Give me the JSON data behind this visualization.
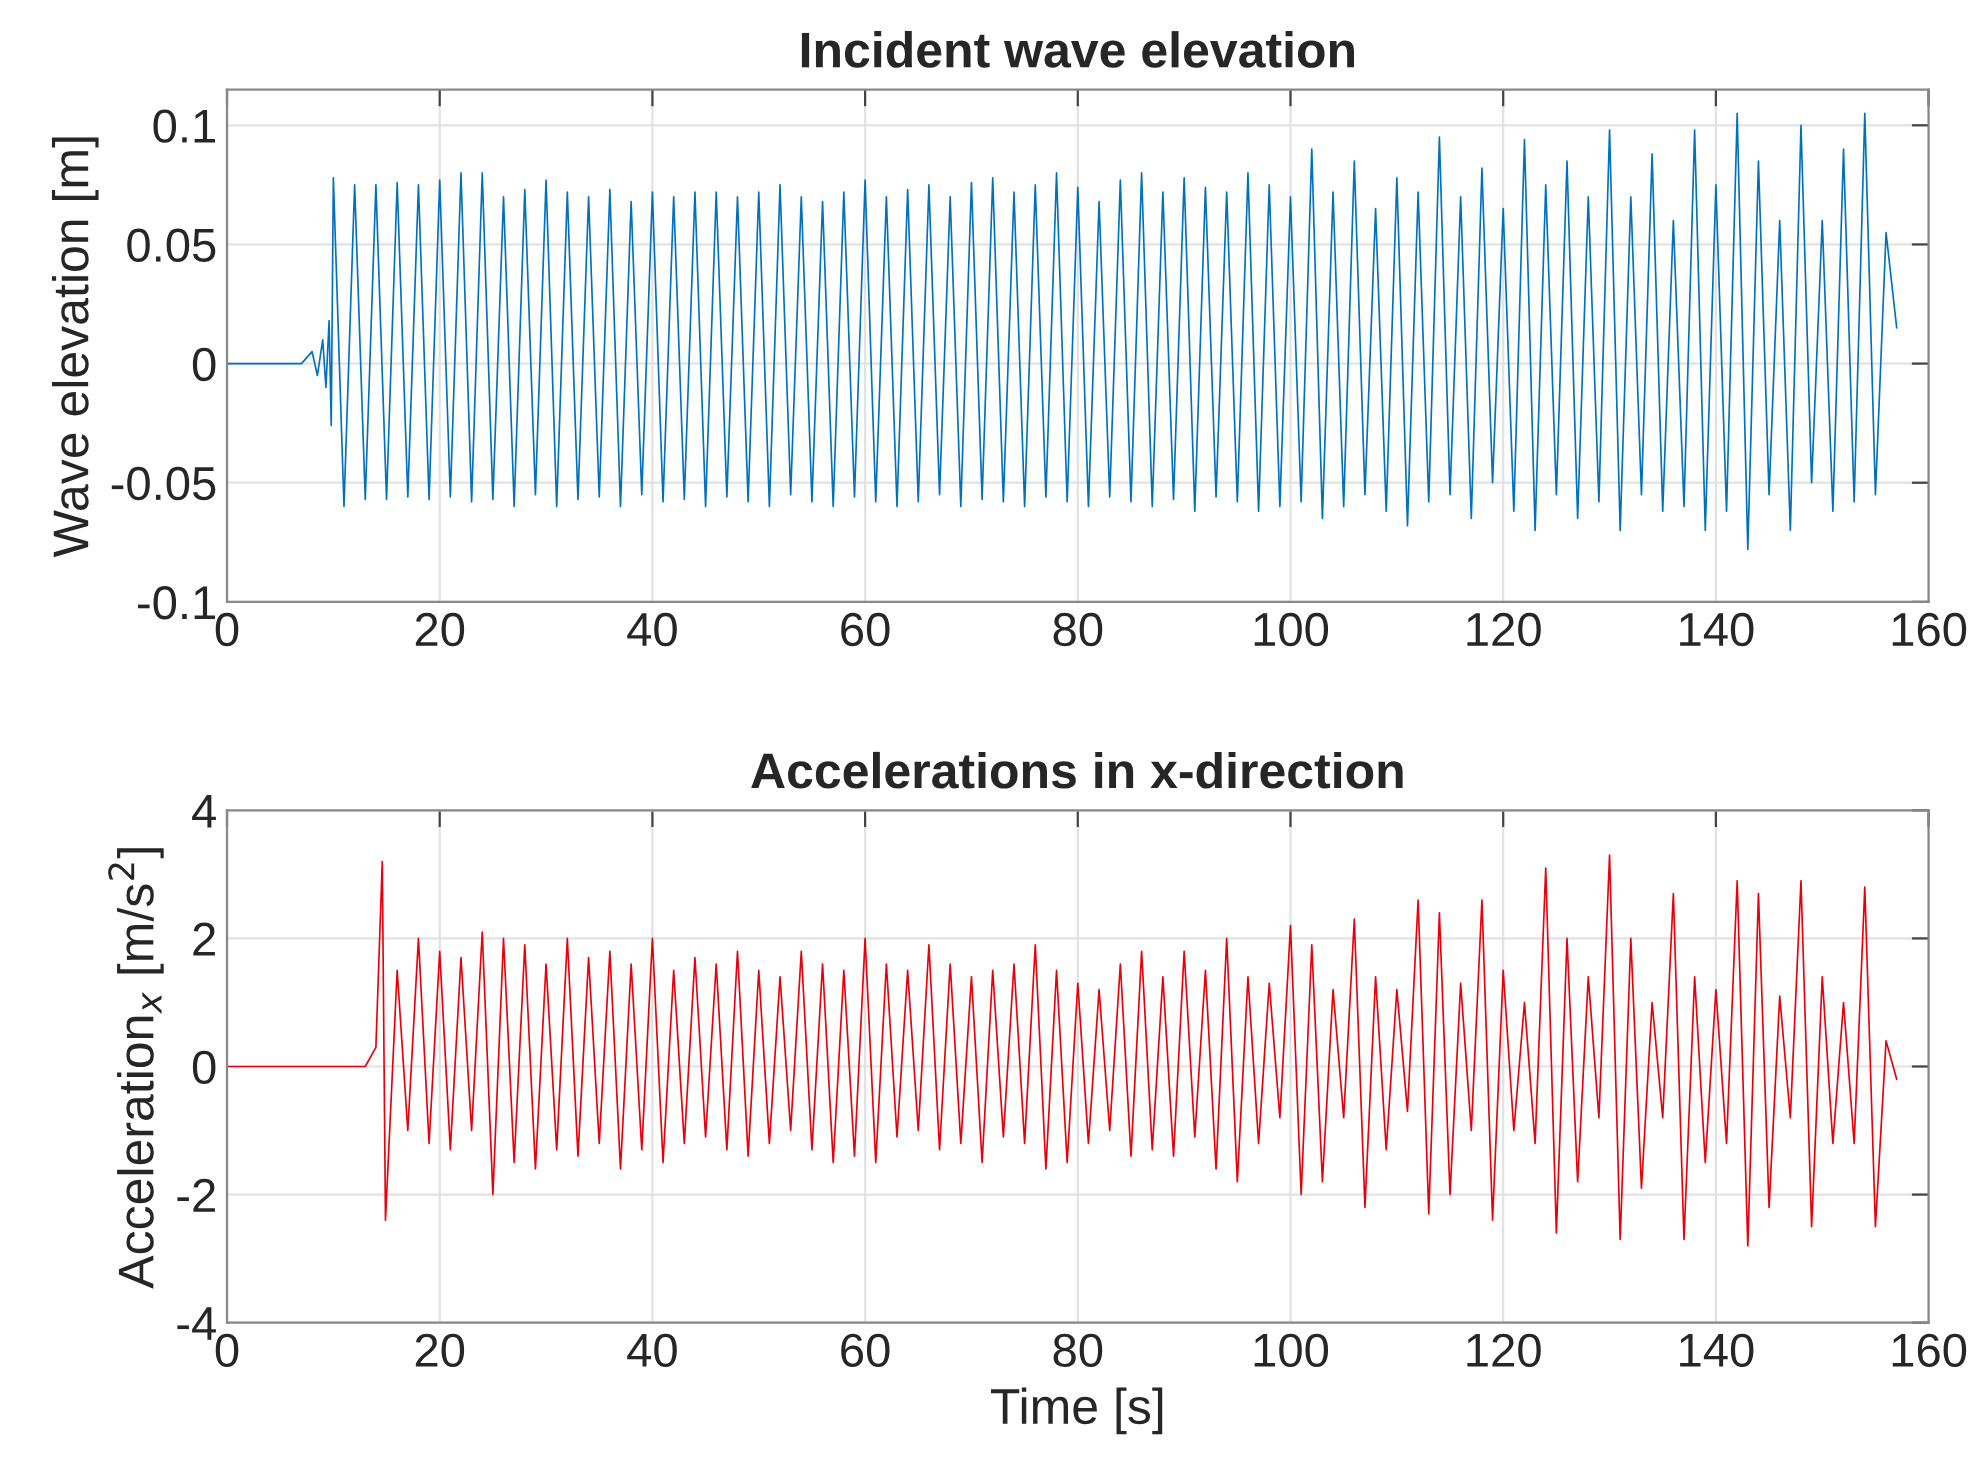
{
  "chart_data": [
    {
      "type": "line",
      "title": "Incident wave elevation",
      "ylabel": "Wave elevation [m]",
      "xlim": [
        0,
        160
      ],
      "xticks": [
        0,
        20,
        40,
        60,
        80,
        100,
        120,
        140,
        160
      ],
      "ylim": [
        -0.1,
        0.115
      ],
      "yticks": [
        -0.1,
        -0.05,
        0,
        0.05,
        0.1
      ],
      "grid": true,
      "line_style": "solid",
      "series": [
        {
          "color": "#0072bd",
          "x": [
            0,
            7,
            8,
            8.5,
            9,
            9.3,
            9.6,
            9.8,
            10,
            11,
            12,
            13,
            14,
            15,
            16,
            17,
            18,
            19,
            20,
            21,
            22,
            23,
            24,
            25,
            26,
            27,
            28,
            29,
            30,
            31,
            32,
            33,
            34,
            35,
            36,
            37,
            38,
            39,
            40,
            41,
            42,
            43,
            44,
            45,
            46,
            47,
            48,
            49,
            50,
            51,
            52,
            53,
            54,
            55,
            56,
            57,
            58,
            59,
            60,
            61,
            62,
            63,
            64,
            65,
            66,
            67,
            68,
            69,
            70,
            71,
            72,
            73,
            74,
            75,
            76,
            77,
            78,
            79,
            80,
            81,
            82,
            83,
            84,
            85,
            86,
            87,
            88,
            89,
            90,
            91,
            92,
            93,
            94,
            95,
            96,
            97,
            98,
            99,
            100,
            101,
            102,
            103,
            104,
            105,
            106,
            107,
            108,
            109,
            110,
            111,
            112,
            113,
            114,
            115,
            116,
            117,
            118,
            119,
            120,
            121,
            122,
            123,
            124,
            125,
            126,
            127,
            128,
            129,
            130,
            131,
            132,
            133,
            134,
            135,
            136,
            137,
            138,
            139,
            140,
            141,
            142,
            143,
            144,
            145,
            146,
            147,
            148,
            149,
            150,
            151,
            152,
            153,
            154,
            155,
            156,
            157
          ],
          "values": [
            0,
            0,
            0.005,
            -0.005,
            0.01,
            -0.01,
            0.018,
            -0.026,
            0.078,
            -0.06,
            0.075,
            -0.057,
            0.075,
            -0.057,
            0.076,
            -0.056,
            0.075,
            -0.057,
            0.077,
            -0.056,
            0.08,
            -0.058,
            0.08,
            -0.057,
            0.07,
            -0.06,
            0.073,
            -0.055,
            0.077,
            -0.06,
            0.072,
            -0.057,
            0.07,
            -0.056,
            0.073,
            -0.06,
            0.068,
            -0.055,
            0.072,
            -0.058,
            0.07,
            -0.057,
            0.072,
            -0.06,
            0.072,
            -0.056,
            0.07,
            -0.058,
            0.072,
            -0.06,
            0.075,
            -0.055,
            0.07,
            -0.058,
            0.068,
            -0.06,
            0.072,
            -0.056,
            0.077,
            -0.058,
            0.07,
            -0.06,
            0.073,
            -0.058,
            0.075,
            -0.055,
            0.07,
            -0.06,
            0.076,
            -0.057,
            0.078,
            -0.058,
            0.072,
            -0.06,
            0.075,
            -0.056,
            0.08,
            -0.058,
            0.074,
            -0.06,
            0.068,
            -0.056,
            0.077,
            -0.058,
            0.08,
            -0.06,
            0.072,
            -0.057,
            0.078,
            -0.062,
            0.074,
            -0.056,
            0.072,
            -0.058,
            0.08,
            -0.062,
            0.075,
            -0.06,
            0.07,
            -0.058,
            0.09,
            -0.065,
            0.072,
            -0.06,
            0.085,
            -0.055,
            0.065,
            -0.062,
            0.078,
            -0.068,
            0.072,
            -0.058,
            0.095,
            -0.055,
            0.07,
            -0.065,
            0.082,
            -0.05,
            0.065,
            -0.062,
            0.094,
            -0.07,
            0.075,
            -0.055,
            0.085,
            -0.065,
            0.07,
            -0.058,
            0.098,
            -0.07,
            0.07,
            -0.055,
            0.088,
            -0.062,
            0.06,
            -0.06,
            0.098,
            -0.07,
            0.075,
            -0.062,
            0.105,
            -0.078,
            0.085,
            -0.055,
            0.06,
            -0.07,
            0.1,
            -0.05,
            0.06,
            -0.062,
            0.09,
            -0.058,
            0.105,
            -0.055,
            0.055,
            0.015
          ]
        }
      ]
    },
    {
      "type": "line",
      "title": "Accelerations in x-direction",
      "ylabel": "Acceleration$_{x}$ [m/s$^{2}$]",
      "xlabel": "Time [s]",
      "xlim": [
        0,
        160
      ],
      "xticks": [
        0,
        20,
        40,
        60,
        80,
        100,
        120,
        140,
        160
      ],
      "ylim": [
        -4,
        4
      ],
      "yticks": [
        -4,
        -2,
        0,
        2,
        4
      ],
      "grid": true,
      "line_style": "solid",
      "series": [
        {
          "color": "#e8000b",
          "x": [
            0,
            13,
            14,
            14.6,
            14.9,
            16,
            17,
            18,
            19,
            20,
            21,
            22,
            23,
            24,
            25,
            26,
            27,
            28,
            29,
            30,
            31,
            32,
            33,
            34,
            35,
            36,
            37,
            38,
            39,
            40,
            41,
            42,
            43,
            44,
            45,
            46,
            47,
            48,
            49,
            50,
            51,
            52,
            53,
            54,
            55,
            56,
            57,
            58,
            59,
            60,
            61,
            62,
            63,
            64,
            65,
            66,
            67,
            68,
            69,
            70,
            71,
            72,
            73,
            74,
            75,
            76,
            77,
            78,
            79,
            80,
            81,
            82,
            83,
            84,
            85,
            86,
            87,
            88,
            89,
            90,
            91,
            92,
            93,
            94,
            95,
            96,
            97,
            98,
            99,
            100,
            101,
            102,
            103,
            104,
            105,
            106,
            107,
            108,
            109,
            110,
            111,
            112,
            113,
            114,
            115,
            116,
            117,
            118,
            119,
            120,
            121,
            122,
            123,
            124,
            125,
            126,
            127,
            128,
            129,
            130,
            131,
            132,
            133,
            134,
            135,
            136,
            137,
            138,
            139,
            140,
            141,
            142,
            143,
            144,
            145,
            146,
            147,
            148,
            149,
            150,
            151,
            152,
            153,
            154,
            155,
            156,
            157
          ],
          "values": [
            0,
            0,
            0.3,
            3.2,
            -2.4,
            1.5,
            -1.0,
            2.0,
            -1.2,
            1.8,
            -1.3,
            1.7,
            -1.0,
            2.1,
            -2.0,
            2.0,
            -1.5,
            1.9,
            -1.6,
            1.6,
            -1.3,
            2.0,
            -1.4,
            1.7,
            -1.2,
            1.8,
            -1.6,
            1.6,
            -1.3,
            2.0,
            -1.5,
            1.5,
            -1.2,
            1.7,
            -1.1,
            1.6,
            -1.3,
            1.8,
            -1.4,
            1.5,
            -1.2,
            1.4,
            -1.0,
            1.8,
            -1.3,
            1.6,
            -1.5,
            1.5,
            -1.4,
            2.0,
            -1.5,
            1.6,
            -1.1,
            1.5,
            -1.0,
            1.9,
            -1.3,
            1.6,
            -1.2,
            1.4,
            -1.5,
            1.5,
            -1.1,
            1.6,
            -1.2,
            1.9,
            -1.6,
            1.5,
            -1.5,
            1.3,
            -1.2,
            1.2,
            -1.0,
            1.6,
            -1.4,
            1.8,
            -1.3,
            1.4,
            -1.4,
            1.8,
            -1.1,
            1.5,
            -1.6,
            2.0,
            -1.8,
            1.4,
            -1.2,
            1.3,
            -0.8,
            2.2,
            -2.0,
            1.9,
            -1.8,
            1.2,
            -0.8,
            2.3,
            -2.2,
            1.4,
            -1.3,
            1.2,
            -0.7,
            2.6,
            -2.3,
            2.4,
            -2.0,
            1.3,
            -1.0,
            2.6,
            -2.4,
            1.5,
            -1.0,
            1.0,
            -1.2,
            3.1,
            -2.6,
            2.0,
            -1.8,
            1.4,
            -0.8,
            3.3,
            -2.7,
            2.0,
            -1.9,
            1.0,
            -0.8,
            2.7,
            -2.7,
            1.4,
            -1.5,
            1.2,
            -1.2,
            2.9,
            -2.8,
            2.7,
            -2.2,
            1.1,
            -0.8,
            2.9,
            -2.5,
            1.4,
            -1.2,
            1.0,
            -1.2,
            2.8,
            -2.5,
            0.4,
            -0.2
          ]
        }
      ]
    }
  ]
}
